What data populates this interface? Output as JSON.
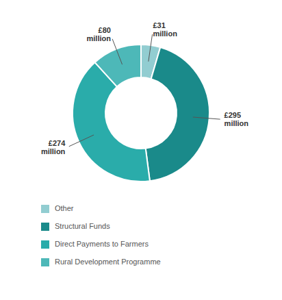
{
  "chart_data": {
    "type": "pie",
    "categories": [
      "Other",
      "Structural Funds",
      "Direct Payments to Farmers",
      "Rural Development Programme"
    ],
    "values": [
      31,
      295,
      274,
      80
    ],
    "value_labels": [
      "£31\nmillion",
      "£295\nmillion",
      "£274\nmillion",
      "£80\nmillion"
    ],
    "colors": [
      "#92cdd1",
      "#1a8a8a",
      "#2aacaa",
      "#4db8b8"
    ],
    "data_labels": true,
    "legend": "bottom"
  }
}
